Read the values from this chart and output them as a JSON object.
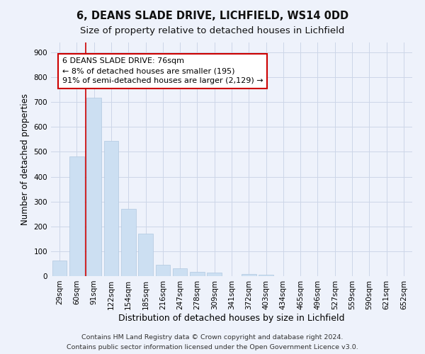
{
  "title": "6, DEANS SLADE DRIVE, LICHFIELD, WS14 0DD",
  "subtitle": "Size of property relative to detached houses in Lichfield",
  "xlabel": "Distribution of detached houses by size in Lichfield",
  "ylabel": "Number of detached properties",
  "categories": [
    "29sqm",
    "60sqm",
    "91sqm",
    "122sqm",
    "154sqm",
    "185sqm",
    "216sqm",
    "247sqm",
    "278sqm",
    "309sqm",
    "341sqm",
    "372sqm",
    "403sqm",
    "434sqm",
    "465sqm",
    "496sqm",
    "527sqm",
    "559sqm",
    "590sqm",
    "621sqm",
    "652sqm"
  ],
  "values": [
    62,
    480,
    717,
    543,
    271,
    170,
    46,
    32,
    17,
    13,
    0,
    8,
    7,
    0,
    0,
    0,
    0,
    0,
    0,
    0,
    0
  ],
  "bar_color": "#ccdff2",
  "bar_edge_color": "#b0c8e0",
  "grid_color": "#ccd6e8",
  "background_color": "#eef2fb",
  "annotation_text": "6 DEANS SLADE DRIVE: 76sqm\n← 8% of detached houses are smaller (195)\n91% of semi-detached houses are larger (2,129) →",
  "annotation_box_facecolor": "#ffffff",
  "annotation_box_edgecolor": "#cc0000",
  "footnote1": "Contains HM Land Registry data © Crown copyright and database right 2024.",
  "footnote2": "Contains public sector information licensed under the Open Government Licence v3.0.",
  "ylim": [
    0,
    940
  ],
  "yticks": [
    0,
    100,
    200,
    300,
    400,
    500,
    600,
    700,
    800,
    900
  ],
  "title_fontsize": 10.5,
  "subtitle_fontsize": 9.5,
  "xlabel_fontsize": 9,
  "ylabel_fontsize": 8.5,
  "tick_fontsize": 7.5,
  "annotation_fontsize": 8,
  "footnote_fontsize": 6.8,
  "red_line_color": "#cc0000",
  "red_line_x": 1.5
}
